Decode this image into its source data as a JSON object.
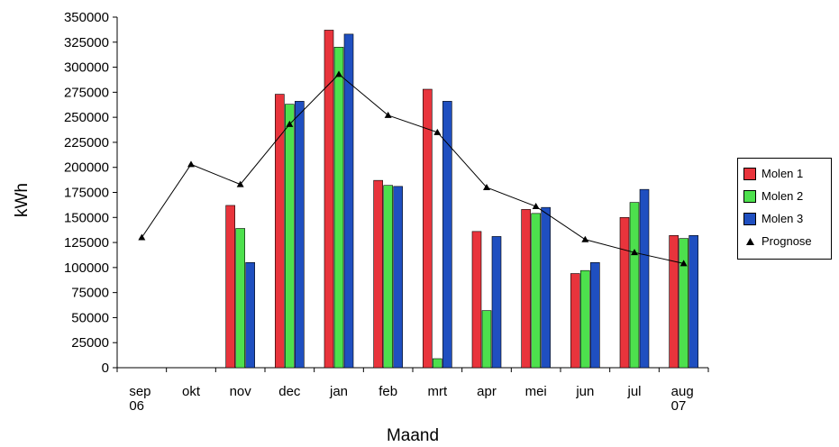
{
  "chart_data": {
    "type": "bar",
    "xlabel": "Maand",
    "ylabel": "kWh",
    "ylim": [
      0,
      350000
    ],
    "ytick_step": 25000,
    "categories": [
      "sep\n06",
      "okt",
      "nov",
      "dec",
      "jan",
      "feb",
      "mrt",
      "apr",
      "mei",
      "jun",
      "jul",
      "aug\n07"
    ],
    "series": [
      {
        "name": "Molen 1",
        "color": "#e8343c",
        "values": [
          null,
          null,
          162000,
          273000,
          337000,
          187000,
          278000,
          136000,
          158000,
          94000,
          150000,
          132000
        ]
      },
      {
        "name": "Molen 2",
        "color": "#4de04d",
        "values": [
          null,
          null,
          139000,
          263000,
          320000,
          182000,
          9000,
          57000,
          154000,
          97000,
          165000,
          129000
        ]
      },
      {
        "name": "Molen 3",
        "color": "#1f4fc0",
        "values": [
          null,
          null,
          105000,
          266000,
          333000,
          181000,
          266000,
          131000,
          160000,
          105000,
          178000,
          132000
        ]
      }
    ],
    "line_series": {
      "name": "Prognose",
      "color": "#000000",
      "marker": "triangle",
      "values": [
        130000,
        203000,
        183000,
        243000,
        293000,
        252000,
        235000,
        180000,
        161000,
        128000,
        115000,
        104000
      ]
    },
    "grid": false,
    "legend": "right"
  }
}
